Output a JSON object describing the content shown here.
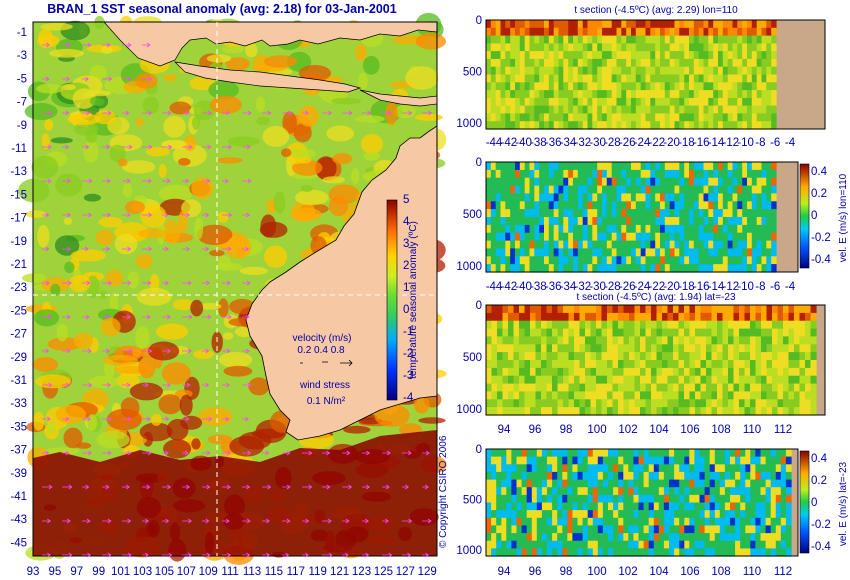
{
  "colors": {
    "land": "#f6c8a4",
    "deep_land": "#c9a889",
    "label": "#0000aa",
    "arrow": "#ff44ff",
    "guide": "#ffffff"
  },
  "map": {
    "title": "BRAN_1 SST seasonal anomaly (avg: 2.18) for 03-Jan-2001",
    "x_ticks": [
      "93",
      "95",
      "97",
      "99",
      "101",
      "103",
      "105",
      "107",
      "109",
      "111",
      "113",
      "115",
      "117",
      "119",
      "121",
      "123",
      "125",
      "127",
      "129"
    ],
    "y_ticks": [
      "-1",
      "-3",
      "-5",
      "-7",
      "-9",
      "-11",
      "-13",
      "-15",
      "-17",
      "-19",
      "-21",
      "-23",
      "-25",
      "-27",
      "-29",
      "-31",
      "-33",
      "-35",
      "-37",
      "-39",
      "-41",
      "-43",
      "-45"
    ],
    "colorbar_label": "temperature seasonal anomaly (ºC)",
    "colorbar_ticks": [
      "5",
      "4",
      "3",
      "2",
      "1",
      "0",
      "-1",
      "-2",
      "-3",
      "-4"
    ],
    "velocity_label": "velocity (m/s)",
    "velocity_scale": "0.2 0.4 0.8",
    "wind_label": "wind stress",
    "wind_scale": "0.1 N/m²",
    "copyright": "© Copyright CSIRO 2006"
  },
  "panels": {
    "p1_title": "t section (-4.5ºC) (avg: 2.29) lon=110",
    "p3_title": "t section (-4.5ºC) (avg: 1.94) lat=-23",
    "depth_ticks": [
      "0",
      "500",
      "1000"
    ],
    "lat_ticks": [
      "-44",
      "-42",
      "-40",
      "-38",
      "-36",
      "-34",
      "-32",
      "-30",
      "-28",
      "-26",
      "-24",
      "-22",
      "-20",
      "-18",
      "-16",
      "-14",
      "-12",
      "-10",
      "-8",
      "-6",
      "-4"
    ],
    "lon_ticks": [
      "94",
      "96",
      "98",
      "100",
      "102",
      "104",
      "106",
      "108",
      "110",
      "112"
    ],
    "vel_label_lon": "vel. E (m/s) lon=110",
    "vel_label_lat": "vel. E (m/s) lat=-23",
    "vel_ticks": [
      "0.4",
      "0.2",
      "0",
      "-0.2",
      "-0.4"
    ]
  },
  "chart_data": [
    {
      "type": "heatmap",
      "title": "BRAN_1 SST seasonal anomaly (avg: 2.18) for 03-Jan-2001",
      "xlim": [
        93,
        130
      ],
      "ylim": [
        -45,
        0
      ],
      "color_range": [
        -4,
        5
      ],
      "colorbar_label": "temperature seasonal anomaly (ºC)"
    },
    {
      "type": "heatmap",
      "title": "t section (-4.5ºC) (avg: 2.29) lon=110",
      "xlim": [
        -45,
        -3
      ],
      "ylim": [
        1050,
        0
      ]
    },
    {
      "type": "heatmap",
      "xlim": [
        -45,
        -3
      ],
      "ylim": [
        1050,
        0
      ],
      "color_range": [
        -0.4,
        0.4
      ],
      "colorbar_label": "vel. E (m/s) lon=110"
    },
    {
      "type": "heatmap",
      "title": "t section (-4.5ºC) (avg: 1.94) lat=-23",
      "xlim": [
        93,
        114
      ],
      "ylim": [
        1050,
        0
      ]
    },
    {
      "type": "heatmap",
      "xlim": [
        93,
        114
      ],
      "ylim": [
        1050,
        0
      ],
      "color_range": [
        -0.4,
        0.4
      ],
      "colorbar_label": "vel. E (m/s) lat=-23"
    }
  ]
}
